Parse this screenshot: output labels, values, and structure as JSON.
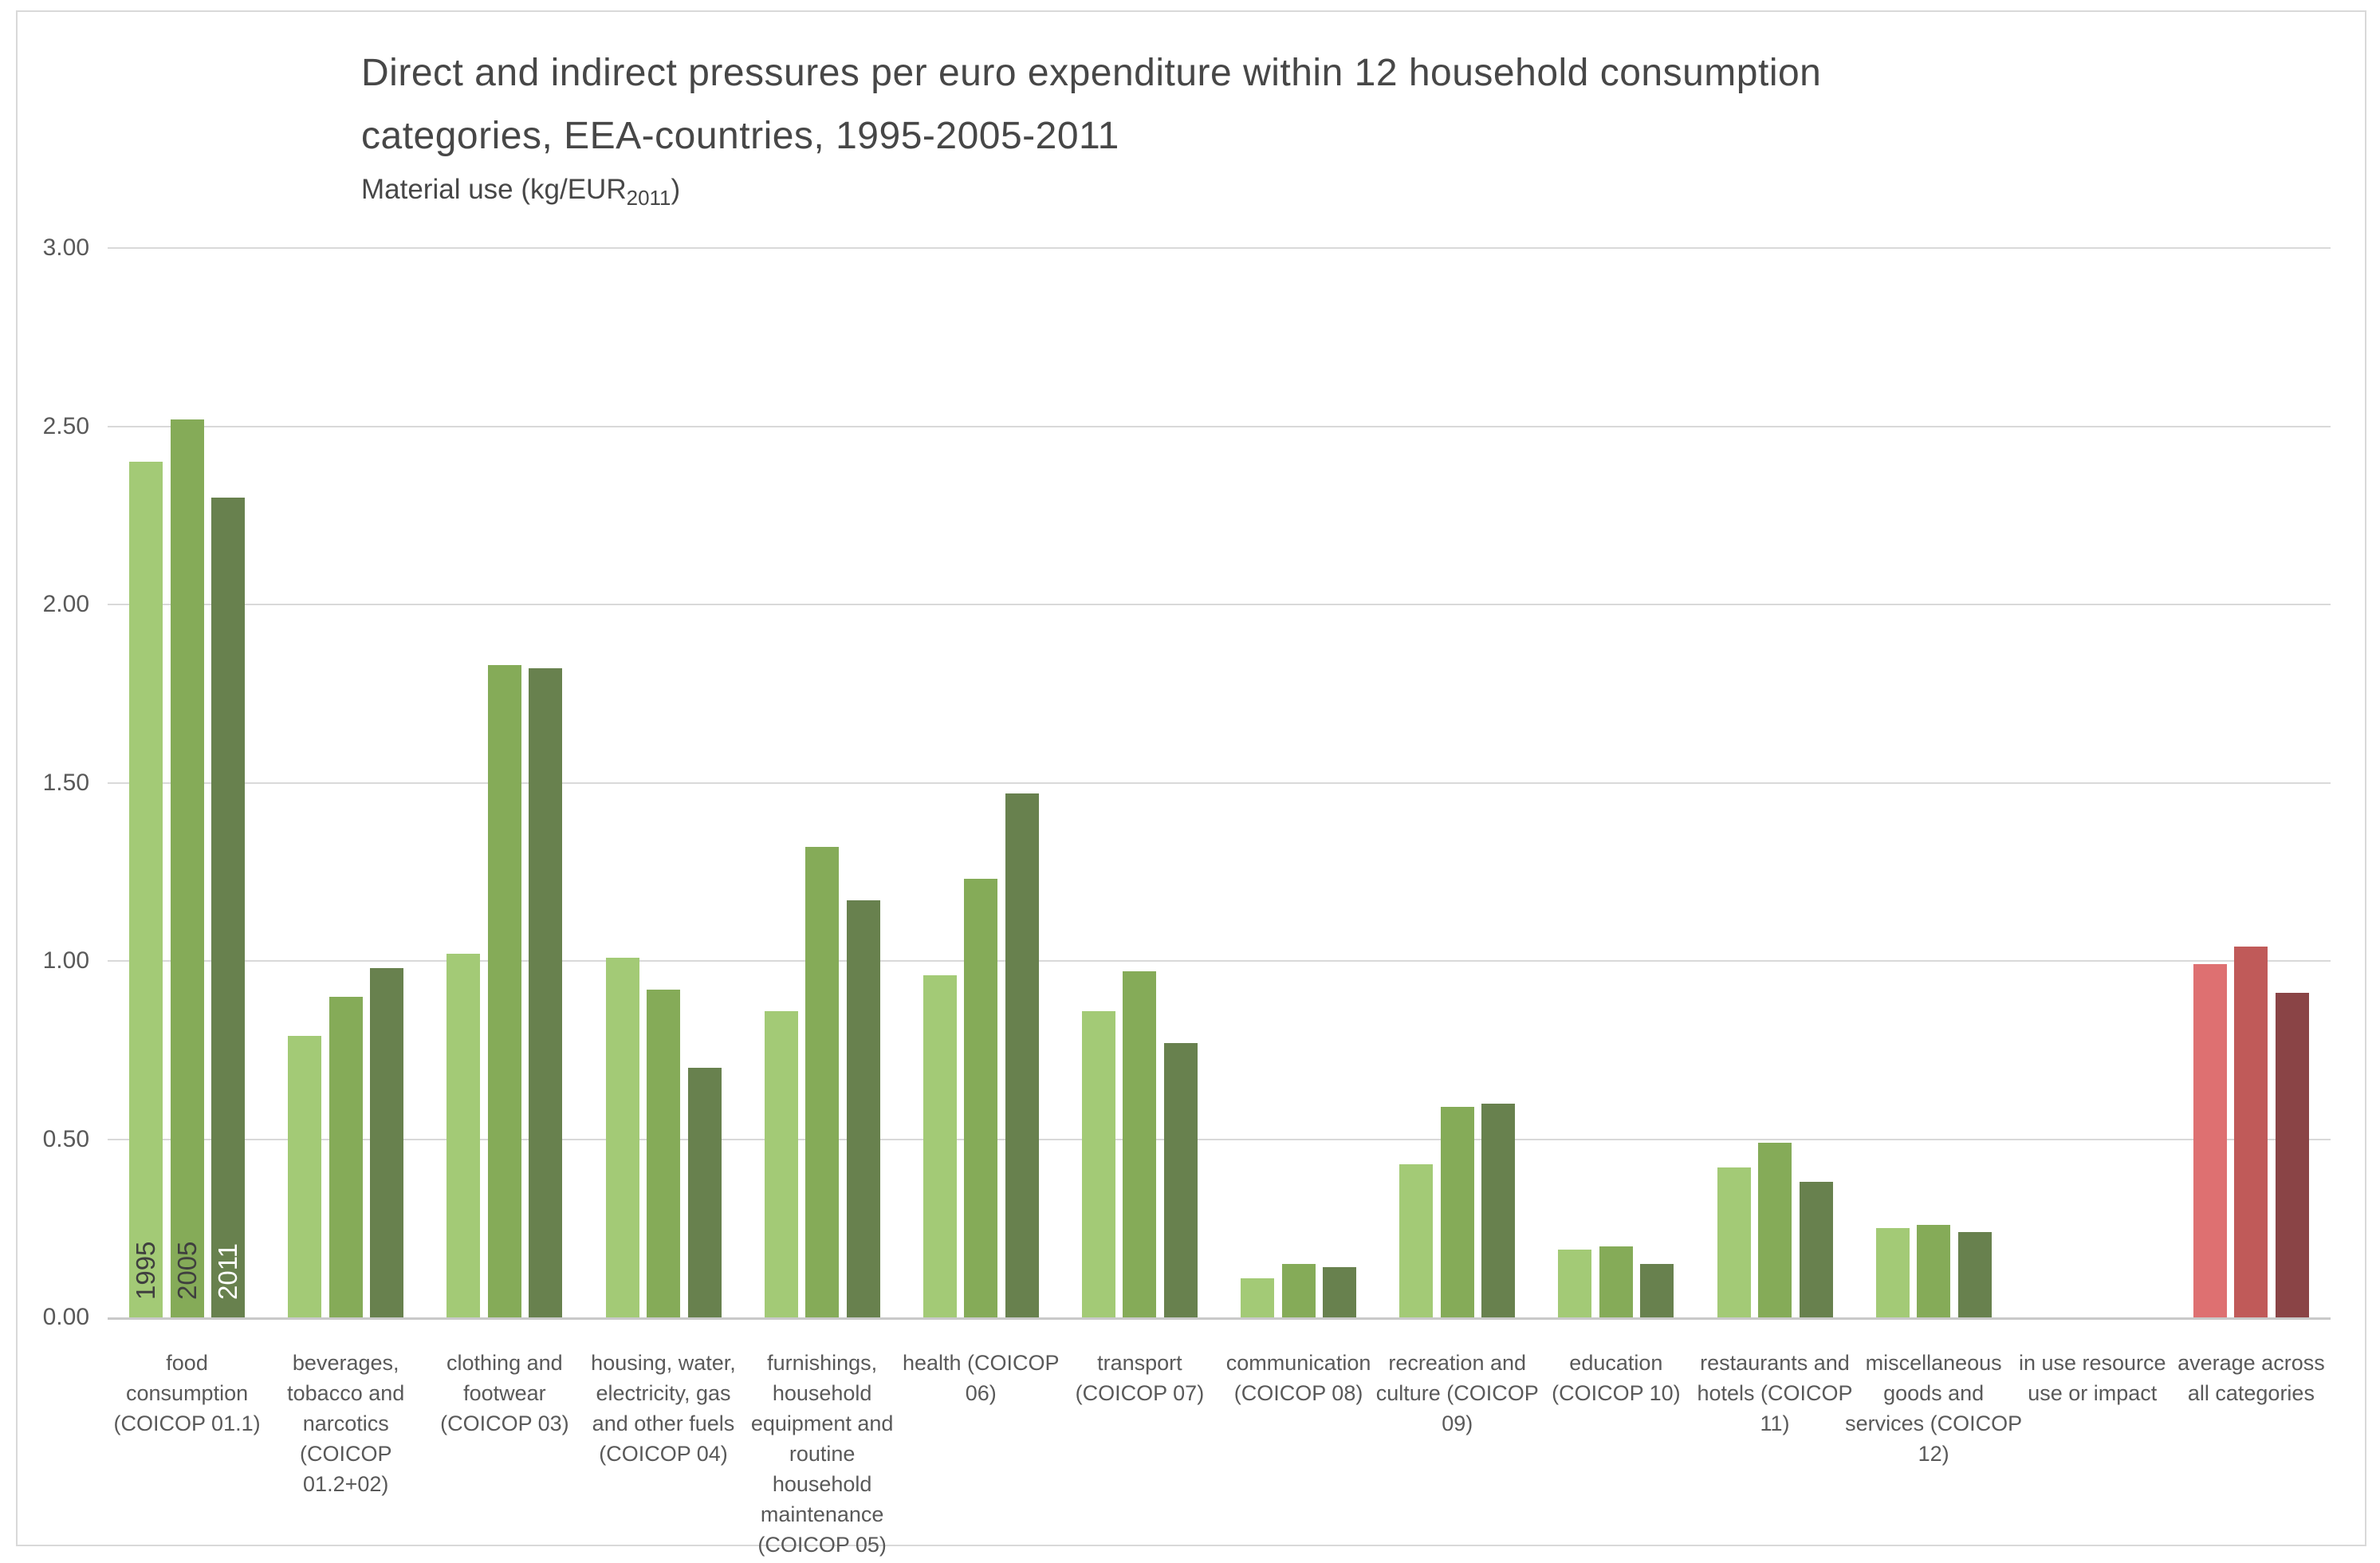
{
  "page": {
    "title_line1": "Direct and indirect pressures per euro expenditure within 12 household consumption",
    "title_line2": "categories, EEA-countries, 1995-2005-2011",
    "subtitle_prefix": "Material use (kg/EUR",
    "subtitle_subscript": "2011",
    "subtitle_suffix": ")"
  },
  "chart_data": {
    "type": "bar",
    "title": "Direct and indirect pressures per euro expenditure within 12 household consumption categories, EEA-countries, 1995-2005-2011",
    "ylabel": "Material use (kg/EUR2011)",
    "xlabel": "",
    "ylim": [
      0,
      3
    ],
    "y_tick_step": 0.5,
    "y_ticks": [
      "0.00",
      "0.50",
      "1.00",
      "1.50",
      "2.00",
      "2.50",
      "3.00"
    ],
    "grid": "horizontal",
    "legend_position": "year labels printed inside first category bars",
    "categories": [
      "food\nconsumption\n(COICOP 01.1)",
      "beverages,\ntobacco and\nnarcotics\n(COICOP\n01.2+02)",
      "clothing and\nfootwear\n(COICOP 03)",
      "housing, water,\nelectricity, gas\nand other fuels\n(COICOP 04)",
      "furnishings,\nhousehold\nequipment and\nroutine\nhousehold\nmaintenance\n(COICOP 05)",
      "health (COICOP\n06)",
      "transport\n(COICOP 07)",
      "communication\n(COICOP 08)",
      "recreation and\nculture (COICOP\n09)",
      "education\n(COICOP 10)",
      "restaurants and\nhotels (COICOP\n11)",
      "miscellaneous\ngoods and\nservices (COICOP\n12)",
      "in use resource\nuse or impact",
      "average across\nall categories"
    ],
    "series": [
      {
        "name": "1995",
        "color": "#a3ca76",
        "average_color": "#de7071",
        "label_color": "#3f3f3f",
        "values": [
          2.4,
          0.79,
          1.02,
          1.01,
          0.86,
          0.96,
          0.86,
          0.11,
          0.43,
          0.19,
          0.42,
          0.25,
          0.0,
          0.99
        ]
      },
      {
        "name": "2005",
        "color": "#85ab58",
        "average_color": "#c05a59",
        "label_color": "#3f3f3f",
        "values": [
          2.52,
          0.9,
          1.83,
          0.92,
          1.32,
          1.23,
          0.97,
          0.15,
          0.59,
          0.2,
          0.49,
          0.26,
          0.0,
          1.04
        ]
      },
      {
        "name": "2011",
        "color": "#68814e",
        "average_color": "#8a4446",
        "label_color": "#ffffff",
        "values": [
          2.3,
          0.98,
          1.82,
          0.7,
          1.17,
          1.47,
          0.77,
          0.14,
          0.6,
          0.15,
          0.38,
          0.24,
          0.0,
          0.91
        ]
      }
    ],
    "empty_category_index": 12,
    "average_category_index": 13
  }
}
